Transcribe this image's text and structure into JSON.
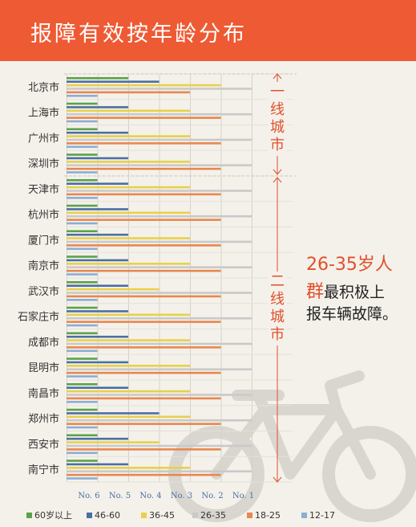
{
  "title": "报障有效按年龄分布",
  "colors": {
    "header": "#ee5a33",
    "accent": "#e0502c",
    "background": "#f4f1ea",
    "bike_watermark": "#d9d6d0"
  },
  "icons": {
    "watermark": "bicycle-icon"
  },
  "annotations": {
    "tier1": "一线城市",
    "tier2": "二线城市",
    "callout_line1": "26-35岁人",
    "callout_line2_accent": "群",
    "callout_line2_rest": "最积极上",
    "callout_line3": "报车辆故障。"
  },
  "chart_data": {
    "type": "bar",
    "orientation": "horizontal",
    "title": "报障有效按年龄分布",
    "categories": [
      "北京市",
      "上海市",
      "广州市",
      "深圳市",
      "天津市",
      "杭州市",
      "厦门市",
      "南京市",
      "武汉市",
      "石家庄市",
      "成都市",
      "昆明市",
      "南昌市",
      "郑州市",
      "西安市",
      "南宁市"
    ],
    "x_tick_labels": [
      "No. 6",
      "No. 5",
      "No. 4",
      "No. 3",
      "No. 2",
      "No. 1"
    ],
    "xlim": [
      0,
      6
    ],
    "xlabel": "",
    "ylabel": "",
    "grid": true,
    "legend_position": "bottom",
    "series": [
      {
        "name": "60岁以上",
        "color": "#5aa24a",
        "values": [
          2,
          1,
          1,
          1,
          1,
          1,
          1,
          1,
          1,
          1,
          1,
          1,
          1,
          1,
          1,
          1
        ]
      },
      {
        "name": "46-60",
        "color": "#4a6fa5",
        "values": [
          3,
          2,
          2,
          2,
          2,
          2,
          2,
          2,
          2,
          2,
          2,
          2,
          2,
          3,
          2,
          2
        ]
      },
      {
        "name": "36-45",
        "color": "#e8d04a",
        "values": [
          5,
          4,
          4,
          4,
          4,
          4,
          4,
          4,
          3,
          4,
          4,
          4,
          4,
          4,
          3,
          4
        ]
      },
      {
        "name": "26-35",
        "color": "#c9c9c9",
        "values": [
          6,
          6,
          6,
          6,
          6,
          6,
          6,
          6,
          6,
          6,
          6,
          6,
          6,
          6,
          6,
          6
        ]
      },
      {
        "name": "18-25",
        "color": "#e8874e",
        "values": [
          4,
          5,
          5,
          5,
          5,
          5,
          5,
          5,
          5,
          5,
          5,
          5,
          5,
          5,
          5,
          5
        ]
      },
      {
        "name": "12-17",
        "color": "#8aaed6",
        "values": [
          1,
          1,
          1,
          1,
          1,
          1,
          1,
          1,
          1,
          1,
          1,
          1,
          1,
          1,
          1,
          1
        ]
      }
    ]
  }
}
